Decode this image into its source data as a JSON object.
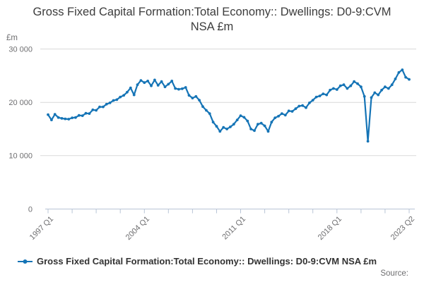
{
  "header": {
    "title": "Gross Fixed Capital Formation:Total Economy:: Dwellings: D0-9:CVM NSA £m"
  },
  "y_axis": {
    "unit": "£m",
    "tick_labels": [
      "30 000",
      "20 000",
      "10 000",
      "0"
    ]
  },
  "x_axis": {
    "tick_labels": [
      "1997 Q1",
      "2004 Q1",
      "2011 Q1",
      "2018 Q1",
      "2023 Q2"
    ]
  },
  "legend": {
    "series_label": "Gross Fixed Capital Formation:Total Economy:: Dwellings: D0-9:CVM NSA £m"
  },
  "footer": {
    "source_label": "Source:"
  },
  "colors": {
    "line": "#1574b6",
    "grid": "#d9d9d9",
    "axis": "#b8c4d6",
    "tick_text": "#6e6e70",
    "title_text": "#3c3c3c",
    "legend_text": "#323232"
  },
  "chart_data": {
    "type": "line",
    "title": "Gross Fixed Capital Formation:Total Economy:: Dwellings: D0-9:CVM NSA £m",
    "unit": "£m",
    "frequency": "quarterly",
    "x_start": "1997 Q1",
    "x_end": "2023 Q2",
    "x_tick_labels": [
      "1997 Q1",
      "2004 Q1",
      "2011 Q1",
      "2018 Q1",
      "2023 Q2"
    ],
    "ylim": [
      0,
      30000
    ],
    "y_gridlines": [
      0,
      10000,
      20000,
      30000
    ],
    "grid": true,
    "legend_position": "bottom",
    "series": [
      {
        "name": "Gross Fixed Capital Formation:Total Economy:: Dwellings: D0-9:CVM NSA £m",
        "values": [
          17700,
          16700,
          17750,
          17150,
          17000,
          16900,
          16850,
          17100,
          17150,
          17550,
          17500,
          17950,
          17900,
          18600,
          18500,
          19150,
          19150,
          19650,
          19900,
          20350,
          20500,
          21000,
          21300,
          21900,
          22700,
          21400,
          23300,
          24100,
          23700,
          24000,
          23100,
          24200,
          23200,
          23900,
          22900,
          23400,
          24000,
          22600,
          22450,
          22550,
          22800,
          21300,
          20800,
          21100,
          20400,
          19200,
          18500,
          17900,
          16300,
          15500,
          14550,
          15300,
          15000,
          15400,
          15900,
          16700,
          17500,
          17200,
          16500,
          15000,
          14700,
          15900,
          16100,
          15600,
          14550,
          16300,
          17100,
          17400,
          17900,
          17600,
          18400,
          18300,
          18800,
          19300,
          19400,
          19000,
          19900,
          20400,
          21000,
          21200,
          21600,
          21400,
          22300,
          22600,
          22400,
          23100,
          23300,
          22600,
          23100,
          23900,
          23500,
          22900,
          21100,
          12700,
          20900,
          21800,
          21400,
          22300,
          22900,
          22600,
          23300,
          24400,
          25600,
          26100,
          24700,
          24300
        ]
      }
    ]
  }
}
